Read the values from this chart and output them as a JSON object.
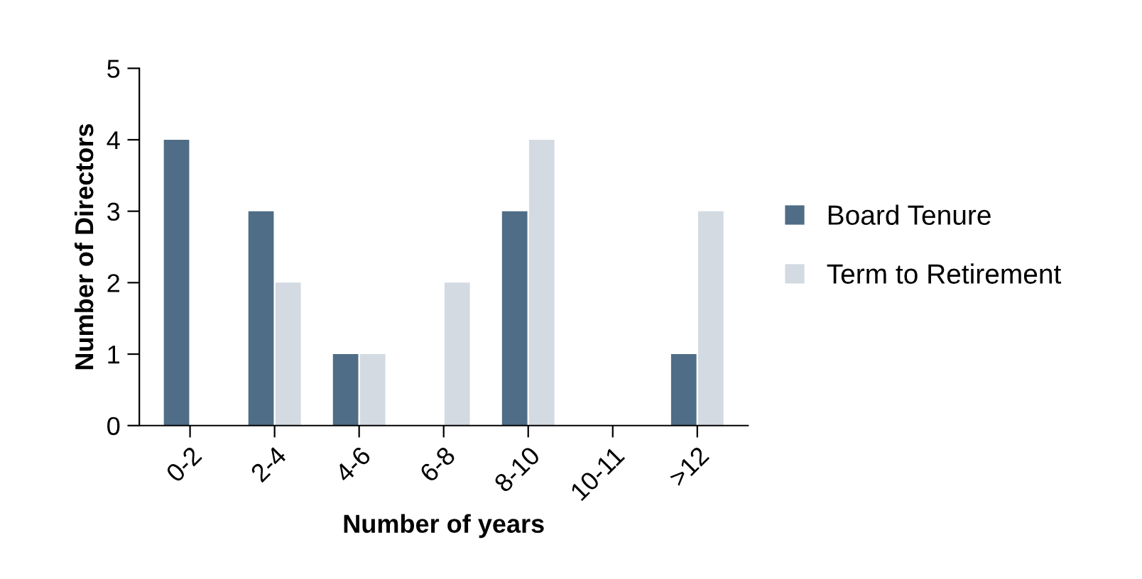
{
  "chart_data": {
    "type": "bar",
    "xlabel": "Number of years",
    "ylabel": "Number of Directors",
    "categories": [
      "0-2",
      "2-4",
      "4-6",
      "6-8",
      "8-10",
      "10-11",
      ">12"
    ],
    "series": [
      {
        "name": "Board Tenure",
        "color": "#4f6d86",
        "values": [
          4,
          3,
          1,
          0,
          3,
          0,
          1
        ]
      },
      {
        "name": "Term to Retirement",
        "color": "#d3dae2",
        "values": [
          0,
          2,
          1,
          2,
          4,
          0,
          3
        ]
      }
    ],
    "ylim": [
      0,
      5
    ],
    "yticks": [
      0,
      1,
      2,
      3,
      4,
      5
    ],
    "grid": false,
    "legend": "right"
  }
}
